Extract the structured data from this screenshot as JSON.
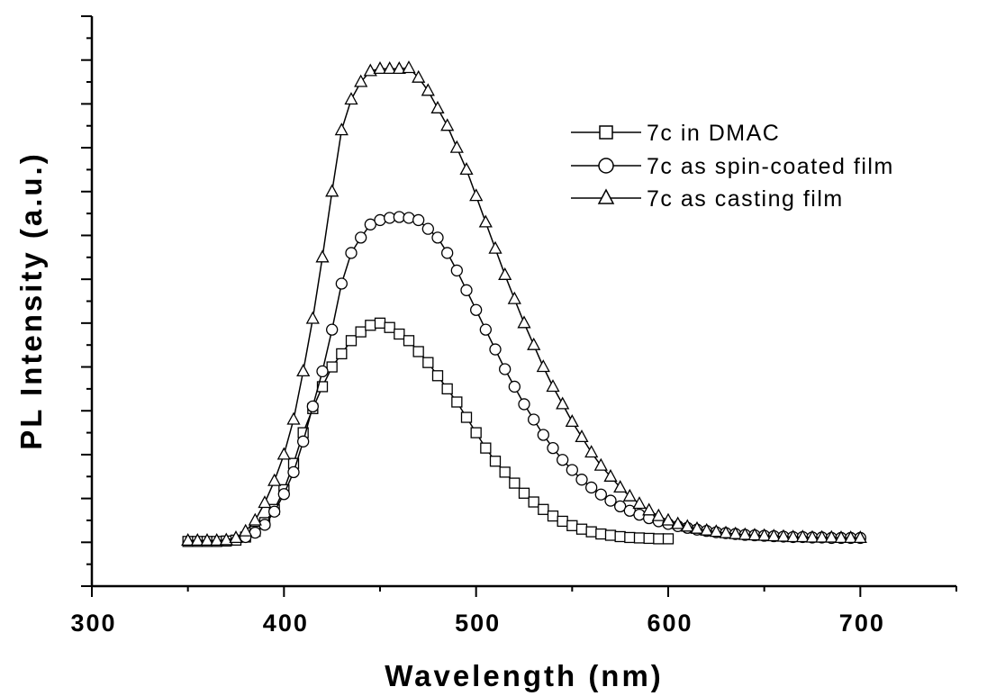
{
  "chart_data": {
    "type": "line",
    "xlabel": "Wavelength (nm)",
    "ylabel": "PL Intensity (a.u.)",
    "xlim": [
      300,
      750
    ],
    "ylim": [
      -1,
      12
    ],
    "x_ticks": [
      300,
      400,
      500,
      600,
      700
    ],
    "y_tick_labels": false,
    "legend_position": "top-right",
    "series": [
      {
        "name": "7c in DMAC",
        "marker": "square",
        "x": [
          350,
          355,
          360,
          365,
          370,
          375,
          380,
          385,
          390,
          395,
          400,
          405,
          410,
          415,
          420,
          425,
          430,
          435,
          440,
          445,
          450,
          455,
          460,
          465,
          470,
          475,
          480,
          485,
          490,
          495,
          500,
          505,
          510,
          515,
          520,
          525,
          530,
          535,
          540,
          545,
          550,
          555,
          560,
          565,
          570,
          575,
          580,
          585,
          590,
          595,
          600
        ],
        "values": [
          0.02,
          0.02,
          0.02,
          0.02,
          0.03,
          0.05,
          0.12,
          0.25,
          0.45,
          0.75,
          1.2,
          1.8,
          2.5,
          3.05,
          3.55,
          4.0,
          4.3,
          4.6,
          4.8,
          4.95,
          5.0,
          4.9,
          4.75,
          4.6,
          4.35,
          4.1,
          3.8,
          3.5,
          3.2,
          2.85,
          2.5,
          2.15,
          1.85,
          1.6,
          1.35,
          1.12,
          0.92,
          0.75,
          0.6,
          0.48,
          0.38,
          0.3,
          0.24,
          0.19,
          0.16,
          0.13,
          0.11,
          0.1,
          0.09,
          0.08,
          0.08
        ]
      },
      {
        "name": "7c as spin-coated film",
        "marker": "circle",
        "x": [
          380,
          385,
          390,
          395,
          400,
          405,
          410,
          415,
          420,
          425,
          430,
          435,
          440,
          445,
          450,
          455,
          460,
          465,
          470,
          475,
          480,
          485,
          490,
          495,
          500,
          505,
          510,
          515,
          520,
          525,
          530,
          535,
          540,
          545,
          550,
          555,
          560,
          565,
          570,
          575,
          580,
          585,
          590,
          595,
          600,
          605,
          610,
          615,
          620,
          625,
          630,
          635,
          640,
          645,
          650,
          655,
          660,
          665,
          670,
          675,
          680,
          685,
          690,
          695,
          700
        ],
        "values": [
          0.12,
          0.22,
          0.4,
          0.7,
          1.1,
          1.6,
          2.3,
          3.1,
          3.9,
          4.85,
          5.9,
          6.6,
          6.95,
          7.25,
          7.35,
          7.4,
          7.42,
          7.4,
          7.35,
          7.15,
          6.95,
          6.6,
          6.2,
          5.75,
          5.3,
          4.85,
          4.4,
          3.95,
          3.55,
          3.15,
          2.8,
          2.45,
          2.15,
          1.88,
          1.65,
          1.43,
          1.25,
          1.09,
          0.95,
          0.82,
          0.72,
          0.63,
          0.55,
          0.48,
          0.42,
          0.37,
          0.33,
          0.29,
          0.26,
          0.23,
          0.21,
          0.19,
          0.17,
          0.16,
          0.15,
          0.14,
          0.13,
          0.12,
          0.12,
          0.11,
          0.11,
          0.1,
          0.1,
          0.1,
          0.1
        ]
      },
      {
        "name": "7c as casting film",
        "marker": "triangle",
        "x": [
          350,
          355,
          360,
          365,
          370,
          375,
          380,
          385,
          390,
          395,
          400,
          405,
          410,
          415,
          420,
          425,
          430,
          435,
          440,
          445,
          450,
          455,
          460,
          465,
          470,
          475,
          480,
          485,
          490,
          495,
          500,
          505,
          510,
          515,
          520,
          525,
          530,
          535,
          540,
          545,
          550,
          555,
          560,
          565,
          570,
          575,
          580,
          585,
          590,
          595,
          600,
          605,
          610,
          615,
          620,
          625,
          630,
          635,
          640,
          645,
          650,
          655,
          660,
          665,
          670,
          675,
          680,
          685,
          690,
          695,
          700
        ],
        "values": [
          0.04,
          0.04,
          0.04,
          0.04,
          0.05,
          0.1,
          0.25,
          0.5,
          0.9,
          1.4,
          2.0,
          2.8,
          3.9,
          5.1,
          6.5,
          8.0,
          9.4,
          10.1,
          10.5,
          10.75,
          10.8,
          10.8,
          10.8,
          10.82,
          10.6,
          10.3,
          9.9,
          9.5,
          9.0,
          8.5,
          7.9,
          7.3,
          6.7,
          6.1,
          5.55,
          5.0,
          4.5,
          4.0,
          3.55,
          3.15,
          2.75,
          2.4,
          2.05,
          1.75,
          1.5,
          1.25,
          1.05,
          0.88,
          0.73,
          0.6,
          0.5,
          0.42,
          0.36,
          0.31,
          0.27,
          0.24,
          0.21,
          0.19,
          0.17,
          0.16,
          0.15,
          0.14,
          0.13,
          0.12,
          0.12,
          0.11,
          0.11,
          0.11,
          0.1,
          0.1,
          0.1
        ]
      }
    ]
  }
}
